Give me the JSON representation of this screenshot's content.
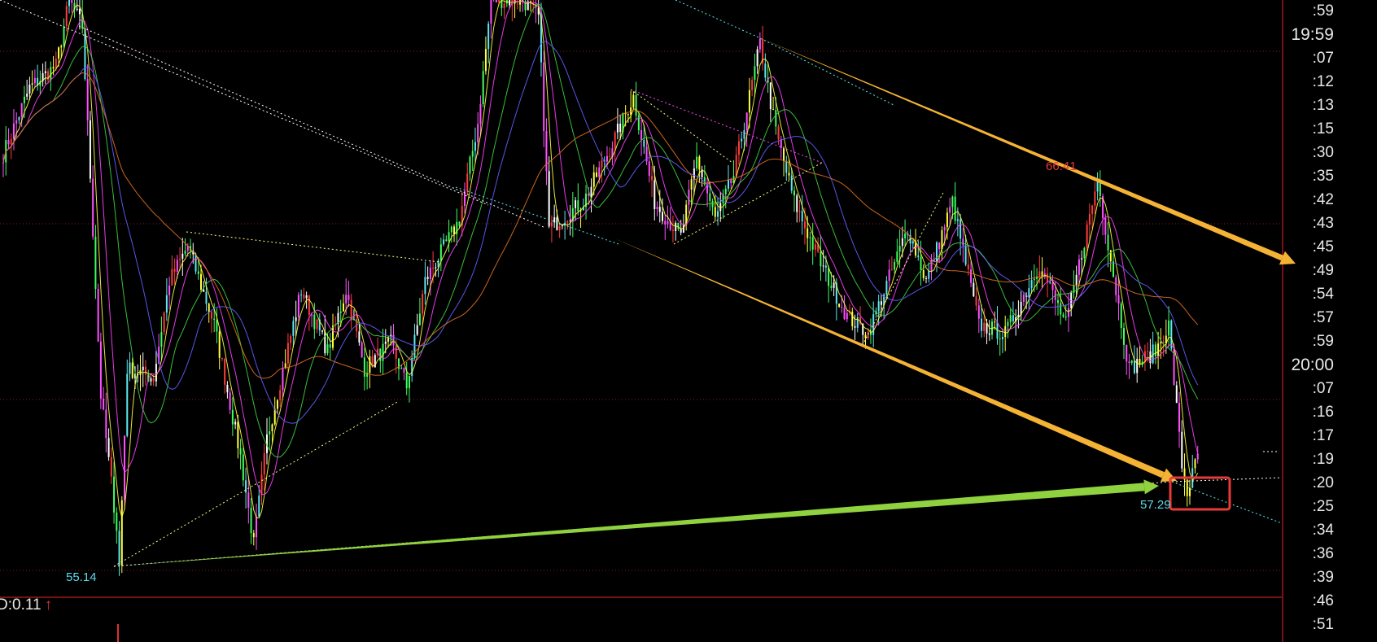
{
  "chart_data": {
    "type": "candlestick",
    "price_path": [
      [
        0,
        67.18
      ],
      [
        10,
        69.11
      ],
      [
        20,
        69.75
      ],
      [
        25,
        71.67
      ],
      [
        30,
        70.9
      ],
      [
        33,
        66.54
      ],
      [
        37,
        60.14
      ],
      [
        43,
        56.29
      ],
      [
        44,
        55.14
      ],
      [
        47,
        60.91
      ],
      [
        57,
        60.65
      ],
      [
        63,
        63.47
      ],
      [
        70,
        64.49
      ],
      [
        80,
        62.19
      ],
      [
        90,
        58.34
      ],
      [
        95,
        55.78
      ],
      [
        100,
        58.86
      ],
      [
        113,
        63.21
      ],
      [
        123,
        61.42
      ],
      [
        130,
        63.21
      ],
      [
        137,
        60.91
      ],
      [
        147,
        61.67
      ],
      [
        153,
        60.39
      ],
      [
        160,
        63.47
      ],
      [
        173,
        65.26
      ],
      [
        180,
        68.08
      ],
      [
        185,
        71.67
      ],
      [
        197,
        71.67
      ],
      [
        203,
        71.16
      ],
      [
        207,
        65.01
      ],
      [
        220,
        65.78
      ],
      [
        230,
        67.31
      ],
      [
        239,
        68.85
      ],
      [
        247,
        65.78
      ],
      [
        257,
        64.75
      ],
      [
        263,
        67.06
      ],
      [
        270,
        65.26
      ],
      [
        277,
        66.54
      ],
      [
        287,
        70.39
      ],
      [
        293,
        67.83
      ],
      [
        300,
        65.78
      ],
      [
        310,
        63.98
      ],
      [
        320,
        62.44
      ],
      [
        328,
        61.93
      ],
      [
        343,
        65.01
      ],
      [
        350,
        63.47
      ],
      [
        360,
        65.78
      ],
      [
        370,
        62.19
      ],
      [
        380,
        61.93
      ],
      [
        393,
        63.98
      ],
      [
        403,
        62.19
      ],
      [
        415,
        66.41
      ],
      [
        427,
        60.91
      ],
      [
        437,
        61.42
      ],
      [
        442,
        62.19
      ],
      [
        447,
        58.09
      ],
      [
        449,
        57.29
      ],
      [
        453,
        58.34
      ]
    ],
    "annotations": {
      "high_label": "66.41",
      "low_label_left": "55.14",
      "low_label_right": "57.29"
    },
    "moving_averages": [
      5,
      10,
      20,
      30,
      60
    ],
    "time_axis_labels": [
      ":59",
      "19:59",
      ":07",
      ":12",
      ":13",
      ":15",
      ":30",
      ":35",
      ":42",
      ":43",
      ":45",
      ":49",
      ":54",
      ":57",
      ":59",
      "20:00",
      ":07",
      ":16",
      ":17",
      ":19",
      ":20",
      ":25",
      ":34",
      ":36",
      ":39",
      ":46",
      ":51"
    ],
    "grid": true,
    "colors": {
      "background": "#000000",
      "grid": "#8b1a1a",
      "trend_arrow_down": "#f5b335",
      "trend_arrow_up": "#8fd13f",
      "highlight_box": "#e83a3a",
      "high_label": "#e23b3b",
      "low_label": "#5fd8e8"
    }
  },
  "indicator": {
    "value_text": "D:0.11",
    "arrow": "↑"
  }
}
